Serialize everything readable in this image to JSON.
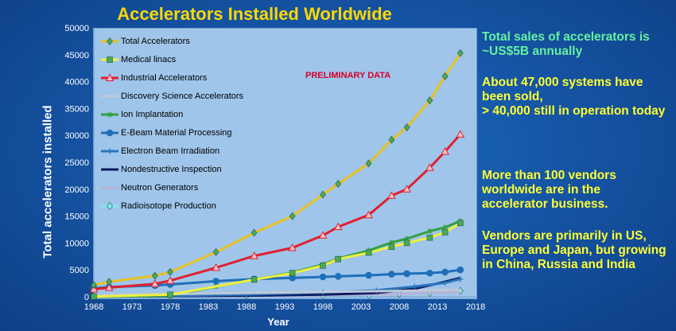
{
  "title": "Accelerators Installed Worldwide",
  "preliminary": "PRELIMINARY DATA",
  "sidebar": {
    "sales": "Total sales of accelerators is ~US$5B annually",
    "sold": "About 47,000 systems have been sold,\n> 40,000 still in operation today",
    "vendors": "More than 100 vendors worldwide are in the accelerator business.",
    "regions": "Vendors are primarily in US, Europe and Japan, but growing in China, Russia and India"
  },
  "chart_data": {
    "type": "line",
    "title": "Accelerators Installed Worldwide",
    "xlabel": "Year",
    "ylabel": "Total accelerators installed",
    "xlim": [
      1968,
      2018
    ],
    "ylim": [
      0,
      50000
    ],
    "x_ticks": [
      "1968",
      "1973",
      "1978",
      "1983",
      "1988",
      "1993",
      "1998",
      "2003",
      "2008",
      "2013",
      "2018"
    ],
    "y_ticks": [
      "0",
      "5000",
      "10000",
      "15000",
      "20000",
      "25000",
      "30000",
      "35000",
      "40000",
      "45000",
      "50000"
    ],
    "grid": false,
    "legend_position": "top-left",
    "series": [
      {
        "name": "Total Accelerators",
        "color": "#e8c020",
        "marker": "diamond",
        "marker_color": "#4aa860",
        "points": [
          [
            1968,
            2200
          ],
          [
            1970,
            2800
          ],
          [
            1976,
            3900
          ],
          [
            1978,
            4600
          ],
          [
            1984,
            8300
          ],
          [
            1989,
            11900
          ],
          [
            1994,
            15000
          ],
          [
            1998,
            19000
          ],
          [
            2000,
            21000
          ],
          [
            2004,
            24800
          ],
          [
            2007,
            29200
          ],
          [
            2009,
            31500
          ],
          [
            2012,
            36500
          ],
          [
            2014,
            41000
          ],
          [
            2016,
            45300
          ]
        ]
      },
      {
        "name": "Medical linacs",
        "color": "#f0f040",
        "marker": "square",
        "marker_color": "#4aa860",
        "points": [
          [
            1968,
            50
          ],
          [
            1978,
            400
          ],
          [
            1989,
            3200
          ],
          [
            1994,
            4400
          ],
          [
            1998,
            5800
          ],
          [
            2000,
            7000
          ],
          [
            2004,
            8200
          ],
          [
            2007,
            9300
          ],
          [
            2009,
            10000
          ],
          [
            2012,
            11000
          ],
          [
            2014,
            12000
          ],
          [
            2016,
            13700
          ]
        ]
      },
      {
        "name": "Industrial Accelerators",
        "color": "#e02030",
        "marker": "triangle",
        "marker_color": "#e02030",
        "points": [
          [
            1968,
            1400
          ],
          [
            1970,
            1700
          ],
          [
            1976,
            2400
          ],
          [
            1978,
            3000
          ],
          [
            1984,
            5400
          ],
          [
            1989,
            7600
          ],
          [
            1994,
            9100
          ],
          [
            1998,
            11400
          ],
          [
            2000,
            13000
          ],
          [
            2004,
            15200
          ],
          [
            2007,
            18800
          ],
          [
            2009,
            20000
          ],
          [
            2012,
            24000
          ],
          [
            2014,
            27000
          ],
          [
            2016,
            30200
          ]
        ]
      },
      {
        "name": "Discovery Science Accelerators",
        "color": "#c0c8d8",
        "marker": "none",
        "marker_color": "#c0c8d8",
        "points": [
          [
            1968,
            300
          ],
          [
            1978,
            500
          ],
          [
            1988,
            700
          ],
          [
            1998,
            900
          ],
          [
            2008,
            1100
          ],
          [
            2016,
            1300
          ]
        ]
      },
      {
        "name": "Ion Implantation",
        "color": "#30a040",
        "marker": "star",
        "marker_color": "#30a040",
        "points": [
          [
            1968,
            0
          ],
          [
            1978,
            200
          ],
          [
            1984,
            1900
          ],
          [
            1989,
            3200
          ],
          [
            1994,
            4500
          ],
          [
            1998,
            6000
          ],
          [
            2000,
            7100
          ],
          [
            2004,
            8600
          ],
          [
            2007,
            10100
          ],
          [
            2009,
            10800
          ],
          [
            2012,
            12200
          ],
          [
            2014,
            12900
          ],
          [
            2016,
            14100
          ]
        ]
      },
      {
        "name": "E-Beam Material Processing",
        "color": "#1f6fb8",
        "marker": "circle",
        "marker_color": "#1f6fb8",
        "points": [
          [
            1968,
            1600
          ],
          [
            1970,
            1800
          ],
          [
            1976,
            2100
          ],
          [
            1978,
            2300
          ],
          [
            1984,
            2900
          ],
          [
            1989,
            3300
          ],
          [
            1994,
            3500
          ],
          [
            1998,
            3700
          ],
          [
            2000,
            3800
          ],
          [
            2004,
            4000
          ],
          [
            2007,
            4200
          ],
          [
            2009,
            4300
          ],
          [
            2012,
            4400
          ],
          [
            2014,
            4600
          ],
          [
            2016,
            5000
          ]
        ]
      },
      {
        "name": "Electron Beam Irradiation",
        "color": "#2a74b8",
        "marker": "plus",
        "marker_color": "#2a74b8",
        "points": [
          [
            1968,
            50
          ],
          [
            1978,
            150
          ],
          [
            1988,
            400
          ],
          [
            1998,
            800
          ],
          [
            2005,
            1200
          ],
          [
            2010,
            1900
          ],
          [
            2014,
            2600
          ],
          [
            2016,
            3300
          ]
        ]
      },
      {
        "name": "Nondestructive Inspection",
        "color": "#0a1a60",
        "marker": "none",
        "marker_color": "#0a1a60",
        "points": [
          [
            1968,
            30
          ],
          [
            1978,
            100
          ],
          [
            1988,
            200
          ],
          [
            1998,
            400
          ],
          [
            2005,
            700
          ],
          [
            2010,
            1500
          ],
          [
            2014,
            2800
          ],
          [
            2016,
            3500
          ]
        ]
      },
      {
        "name": "Neutron Generators",
        "color": "#b8b0d8",
        "marker": "none",
        "marker_color": "#b8b0d8",
        "points": [
          [
            1968,
            20
          ],
          [
            1978,
            60
          ],
          [
            1988,
            150
          ],
          [
            1998,
            250
          ],
          [
            2008,
            500
          ],
          [
            2016,
            900
          ]
        ]
      },
      {
        "name": "Radioisotope Production",
        "color": "#80e8f8",
        "marker": "diamond",
        "marker_color": "#80e8f8",
        "points": [
          [
            1968,
            20
          ],
          [
            1978,
            80
          ],
          [
            1988,
            150
          ],
          [
            1998,
            250
          ],
          [
            2004,
            350
          ],
          [
            2008,
            500
          ],
          [
            2012,
            700
          ],
          [
            2016,
            1100
          ]
        ]
      }
    ]
  }
}
